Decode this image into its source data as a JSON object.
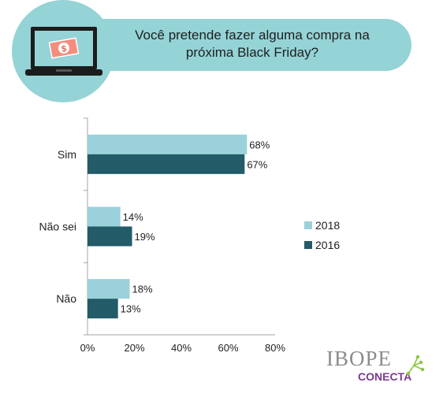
{
  "header": {
    "title": "Você pretende fazer alguma compra na próxima Black Friday?"
  },
  "logo": {
    "name": "IBOPE",
    "sub": "CONECTA"
  },
  "colors": {
    "banner": "#94d3d6",
    "series_2018": "#9bd1da",
    "series_2016": "#235b68",
    "logo_purple": "#7b3a93"
  },
  "icons": [
    "laptop-money-icon",
    "logo-spark-icon"
  ],
  "chart_data": {
    "type": "bar",
    "orientation": "horizontal",
    "categories": [
      "Sim",
      "Não sei",
      "Não"
    ],
    "series": [
      {
        "name": "2018",
        "values": [
          68,
          14,
          18
        ]
      },
      {
        "name": "2016",
        "values": [
          67,
          19,
          13
        ]
      }
    ],
    "value_labels": [
      [
        "68%",
        "14%",
        "18%"
      ],
      [
        "67%",
        "19%",
        "13%"
      ]
    ],
    "xlim": [
      0,
      80
    ],
    "xticks": [
      "0%",
      "20%",
      "40%",
      "60%",
      "80%"
    ],
    "grid": false,
    "legend": "right"
  }
}
